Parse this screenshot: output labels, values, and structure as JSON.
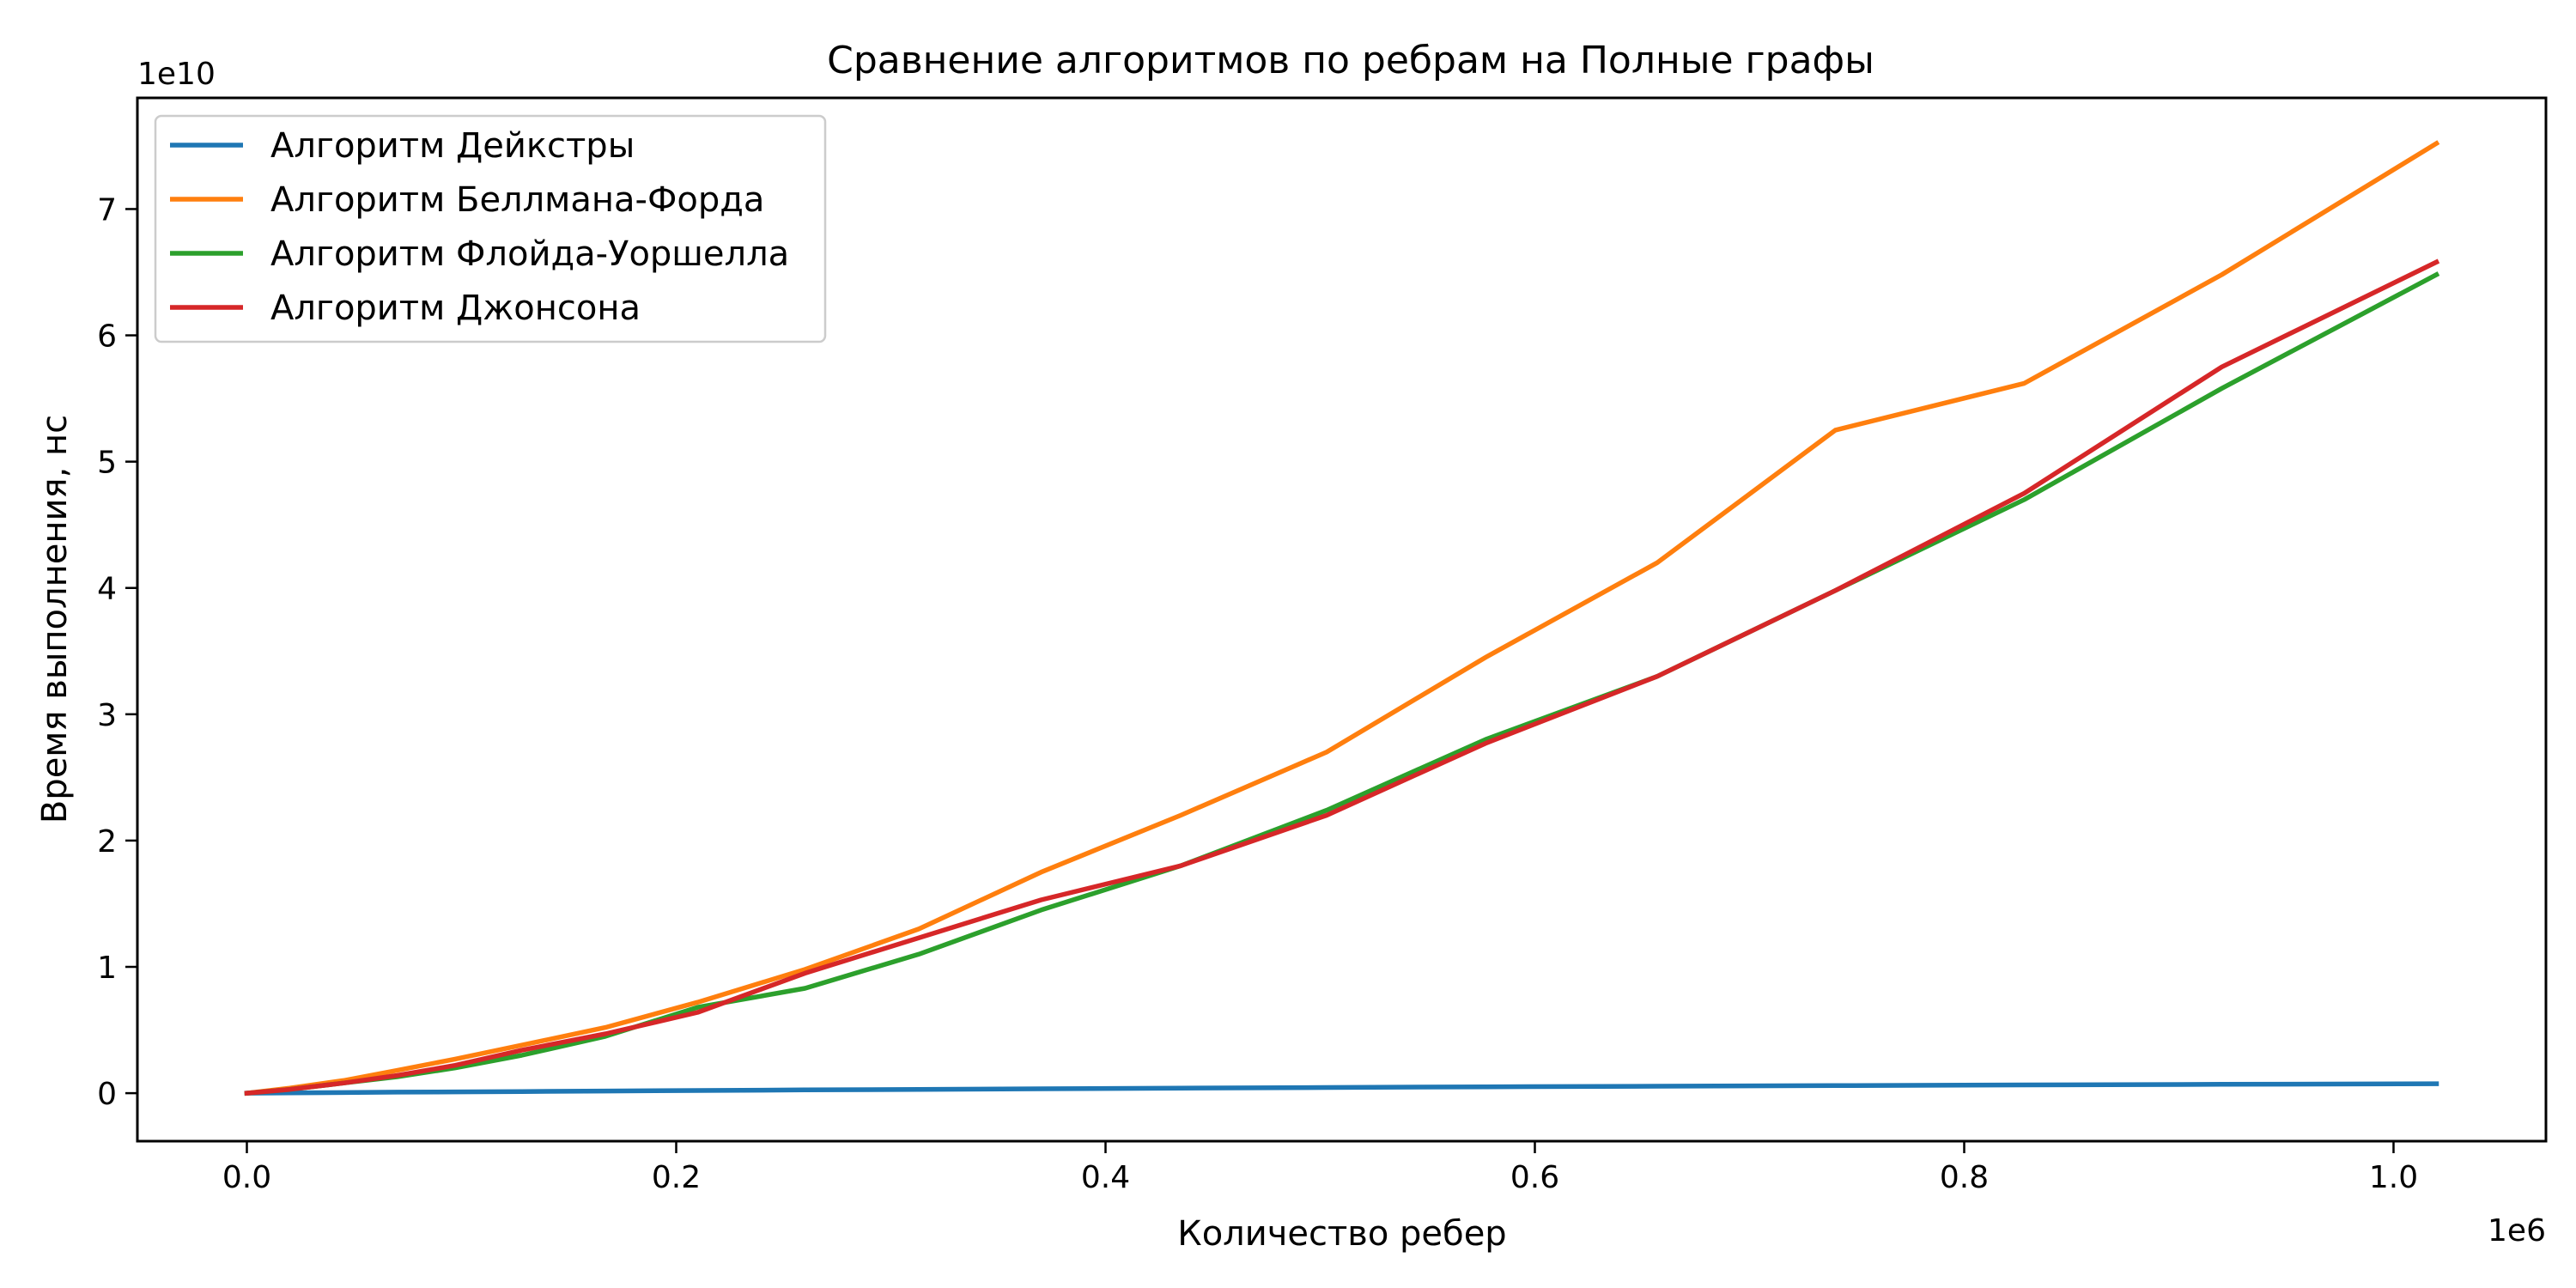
{
  "chart_data": {
    "type": "line",
    "title": "Сравнение алгоритмов по ребрам на Полные графы",
    "xlabel": "Количество ребер",
    "ylabel": "Время выполнения, нс",
    "x_multiplier": "1e6",
    "y_multiplier": "1e10",
    "xlim": [
      -0.051,
      1.071
    ],
    "ylim": [
      -0.38,
      7.88
    ],
    "xticks": [
      0.0,
      0.2,
      0.4,
      0.6,
      0.8,
      1.0
    ],
    "xtick_labels": [
      "0.0",
      "0.2",
      "0.4",
      "0.6",
      "0.8",
      "1.0"
    ],
    "yticks": [
      0,
      1,
      2,
      3,
      4,
      5,
      6,
      7
    ],
    "ytick_labels": [
      "0",
      "1",
      "2",
      "3",
      "4",
      "5",
      "6",
      "7"
    ],
    "grid": false,
    "legend_position": "top-left",
    "series": [
      {
        "name": "Алгоритм Дейкстры",
        "color": "#1f77b4",
        "x": [
          0.0,
          0.02,
          0.045,
          0.07,
          0.097,
          0.128,
          0.167,
          0.21,
          0.26,
          0.313,
          0.37,
          0.435,
          0.503,
          0.577,
          0.657,
          0.74,
          0.828,
          0.92,
          1.02
        ],
        "y": [
          0.0,
          0.003,
          0.005,
          0.008,
          0.01,
          0.013,
          0.017,
          0.021,
          0.026,
          0.03,
          0.035,
          0.04,
          0.045,
          0.05,
          0.055,
          0.06,
          0.065,
          0.07,
          0.075
        ]
      },
      {
        "name": "Алгоритм Беллмана-Форда",
        "color": "#ff7f0e",
        "x": [
          0.0,
          0.02,
          0.045,
          0.07,
          0.097,
          0.128,
          0.167,
          0.21,
          0.26,
          0.313,
          0.37,
          0.435,
          0.503,
          0.577,
          0.657,
          0.74,
          0.828,
          0.92,
          1.02
        ],
        "y": [
          0.0,
          0.04,
          0.1,
          0.18,
          0.27,
          0.38,
          0.52,
          0.72,
          0.98,
          1.3,
          1.75,
          2.2,
          2.7,
          3.45,
          4.2,
          5.25,
          5.62,
          6.48,
          7.52
        ]
      },
      {
        "name": "Алгоритм Флойда-Уоршелла",
        "color": "#2ca02c",
        "x": [
          0.0,
          0.02,
          0.045,
          0.07,
          0.097,
          0.128,
          0.167,
          0.21,
          0.26,
          0.313,
          0.37,
          0.435,
          0.503,
          0.577,
          0.657,
          0.74,
          0.828,
          0.92,
          1.02
        ],
        "y": [
          0.0,
          0.03,
          0.08,
          0.13,
          0.2,
          0.3,
          0.45,
          0.68,
          0.83,
          1.1,
          1.45,
          1.8,
          2.24,
          2.8,
          3.3,
          3.98,
          4.7,
          5.58,
          6.48
        ]
      },
      {
        "name": "Алгоритм Джонсона",
        "color": "#d62728",
        "x": [
          0.0,
          0.02,
          0.045,
          0.07,
          0.097,
          0.128,
          0.167,
          0.21,
          0.26,
          0.313,
          0.37,
          0.435,
          0.503,
          0.577,
          0.657,
          0.74,
          0.828,
          0.92,
          1.02
        ],
        "y": [
          0.0,
          0.03,
          0.08,
          0.14,
          0.22,
          0.34,
          0.47,
          0.64,
          0.95,
          1.23,
          1.53,
          1.8,
          2.2,
          2.77,
          3.3,
          3.98,
          4.75,
          5.75,
          6.58
        ]
      }
    ]
  }
}
